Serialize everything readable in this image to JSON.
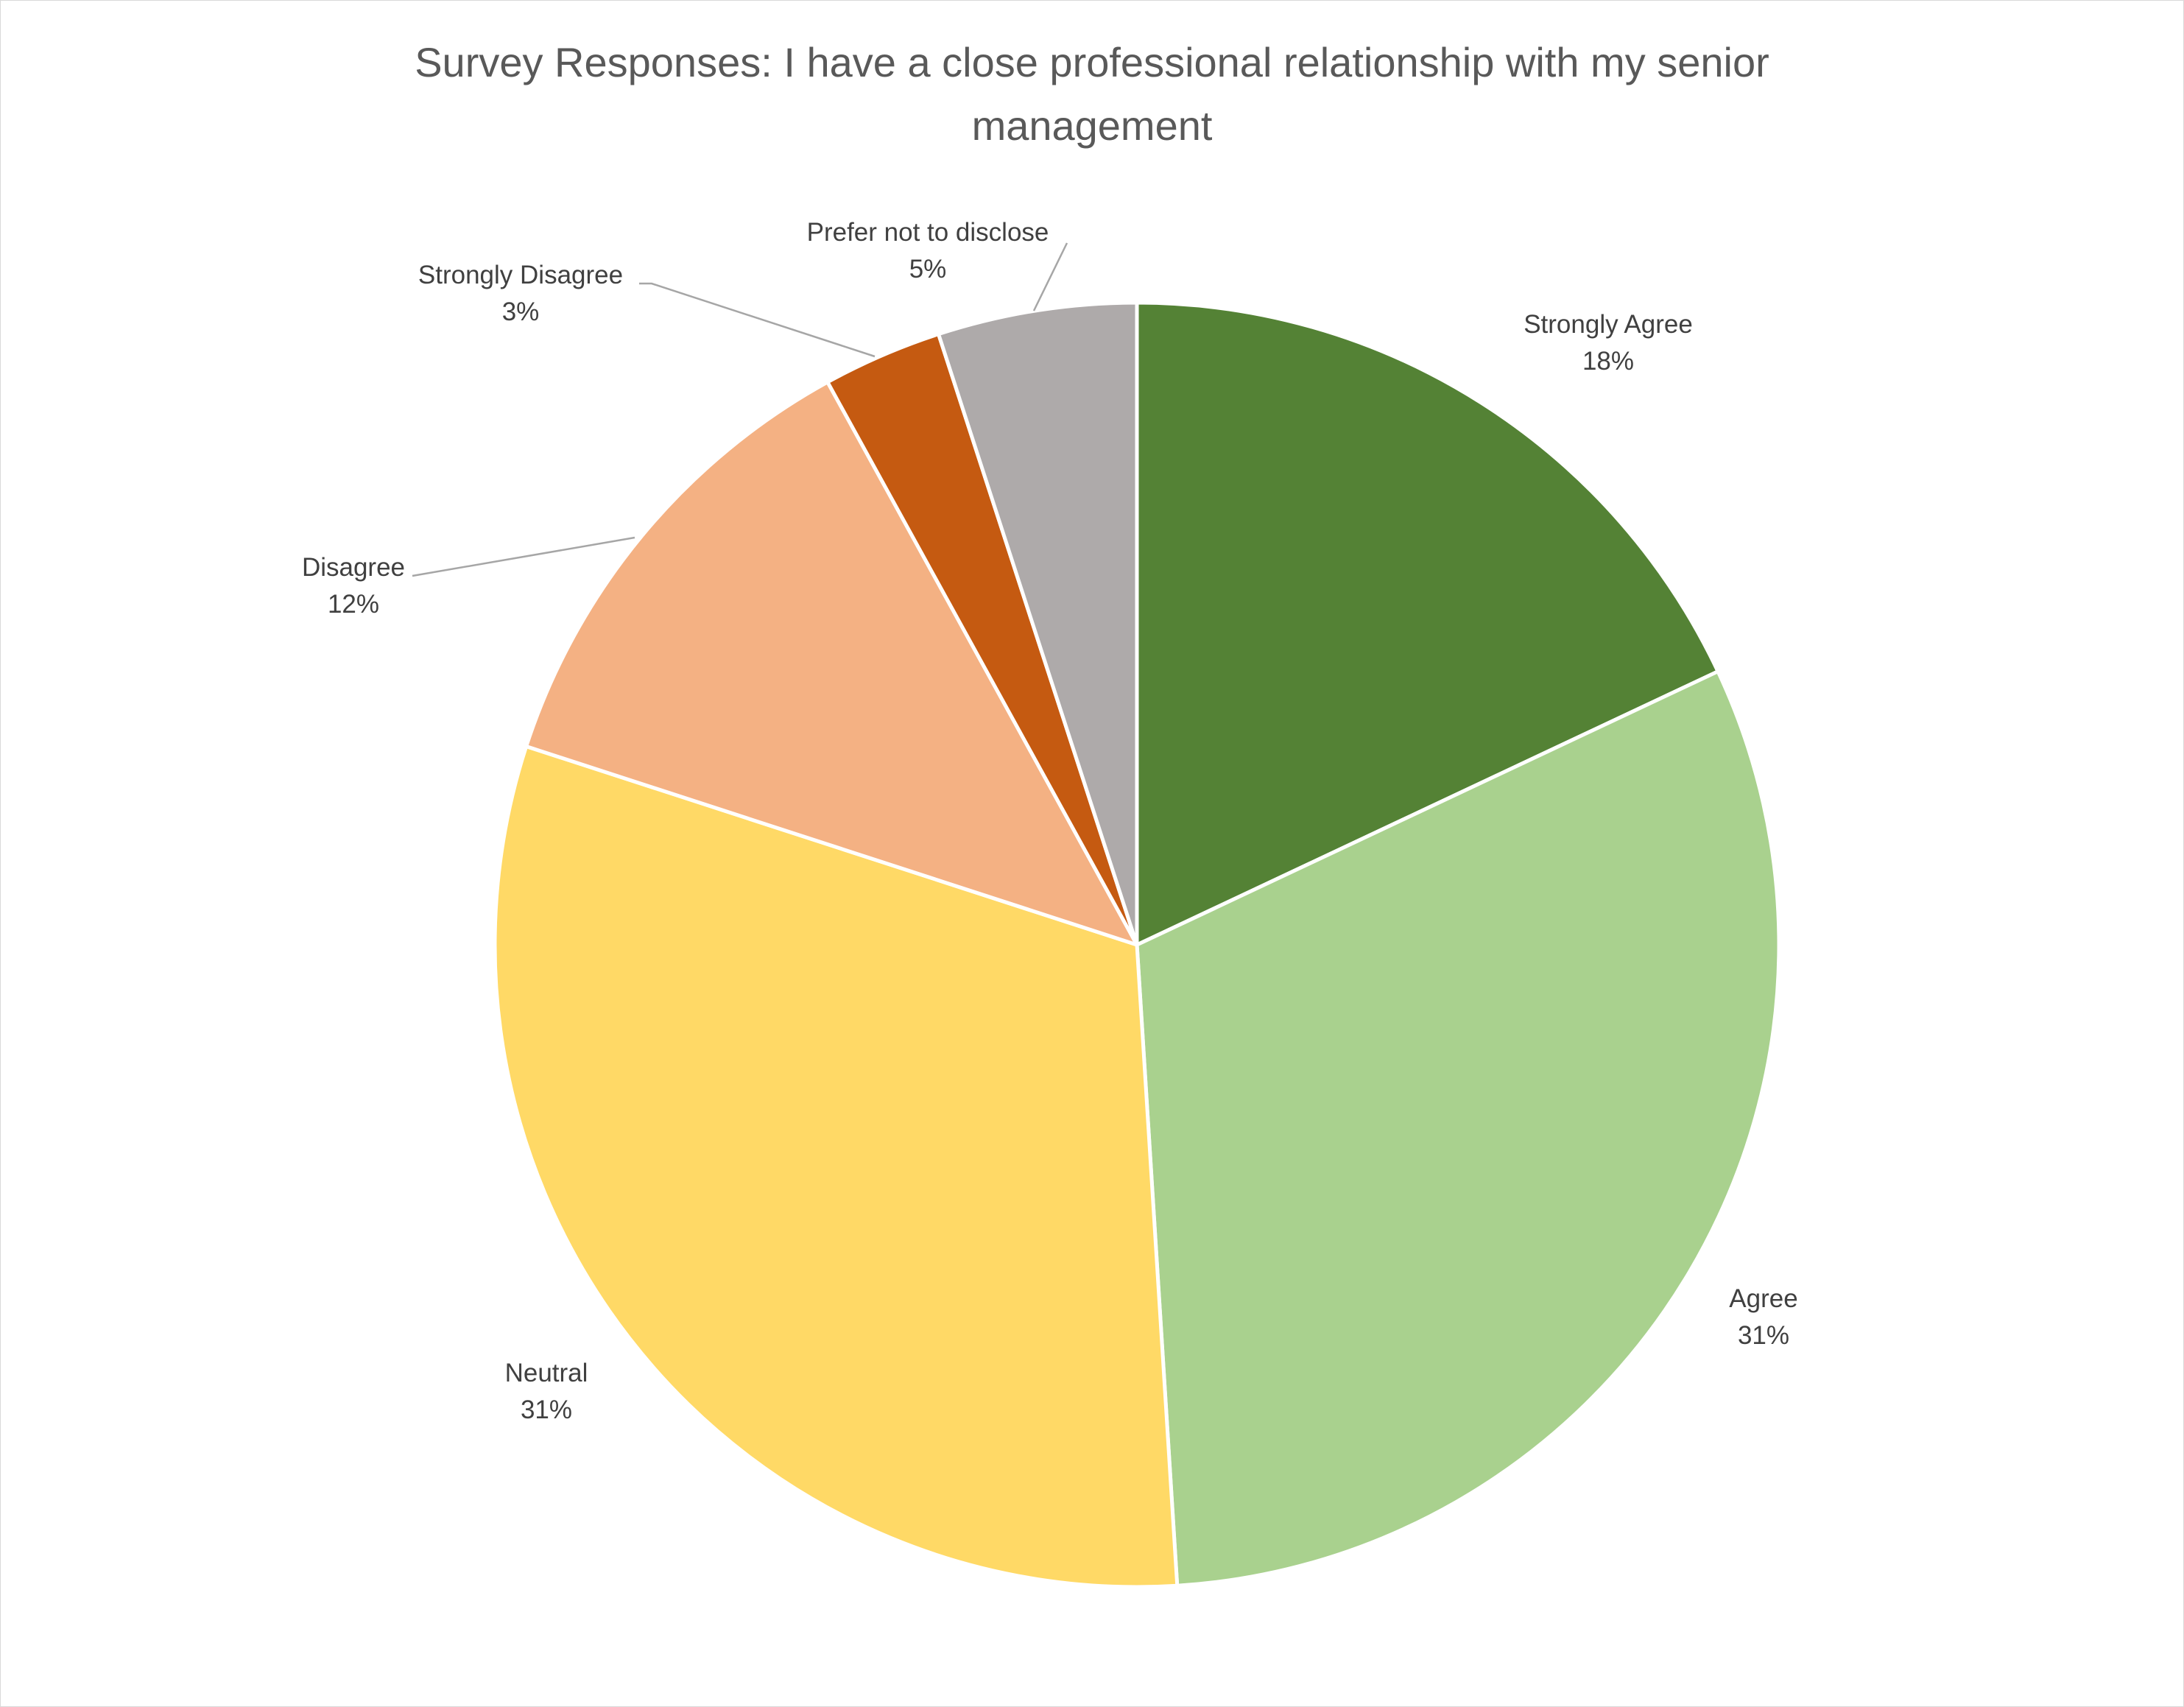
{
  "chart_data": {
    "type": "pie",
    "title_lines": [
      "Survey Responses: I have a close professional relationship with my senior",
      "management"
    ],
    "start_angle_deg": 0,
    "direction": "clockwise",
    "slices": [
      {
        "name": "Strongly Agree",
        "value": 18,
        "label": "18%",
        "color": "#548235"
      },
      {
        "name": "Agree",
        "value": 31,
        "label": "31%",
        "color": "#a9d18e"
      },
      {
        "name": "Neutral",
        "value": 31,
        "label": "31%",
        "color": "#ffd966"
      },
      {
        "name": "Disagree",
        "value": 12,
        "label": "12%",
        "color": "#f4b183"
      },
      {
        "name": "Strongly Disagree",
        "value": 3,
        "label": "3%",
        "color": "#c55a11"
      },
      {
        "name": "Prefer not to disclose",
        "value": 5,
        "label": "5%",
        "color": "#aeaaaa"
      }
    ],
    "legend": "none",
    "data_labels": "outside-with-leader-lines"
  }
}
